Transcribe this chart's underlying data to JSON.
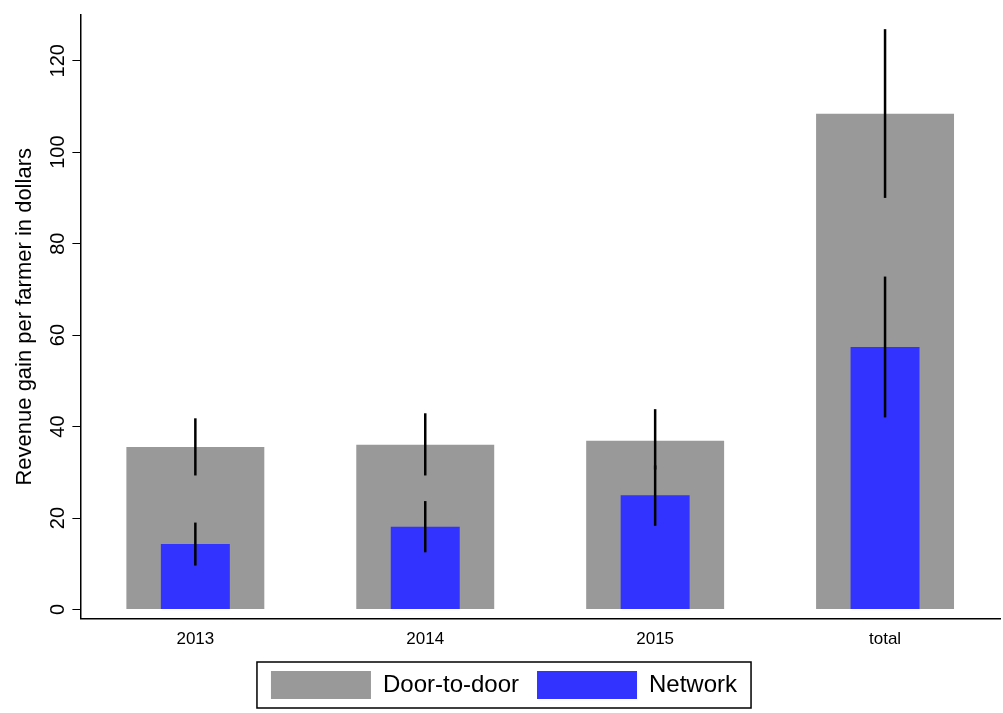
{
  "chart_data": {
    "type": "bar",
    "ylabel": "Revenue gain per farmer in dollars",
    "categories": [
      "2013",
      "2014",
      "2015",
      "total"
    ],
    "series": [
      {
        "name": "Door-to-door",
        "color": "#999999",
        "values": [
          35.5,
          36,
          36.9,
          108.4
        ],
        "errors": [
          [
            29.3,
            41.8
          ],
          [
            29.3,
            42.9
          ],
          [
            30.6,
            43.8
          ],
          [
            90,
            126.9
          ]
        ]
      },
      {
        "name": "Network",
        "color": "#3333ff",
        "values": [
          14.3,
          18.1,
          25,
          57.4
        ],
        "errors": [
          [
            9.6,
            19
          ],
          [
            12.5,
            23.7
          ],
          [
            18.3,
            31.5
          ],
          [
            42,
            72.8
          ]
        ]
      }
    ],
    "ylim": [
      -2,
      130
    ],
    "yticks": [
      0,
      20,
      40,
      60,
      80,
      100,
      120
    ],
    "grid": false,
    "legend": "bottom"
  }
}
